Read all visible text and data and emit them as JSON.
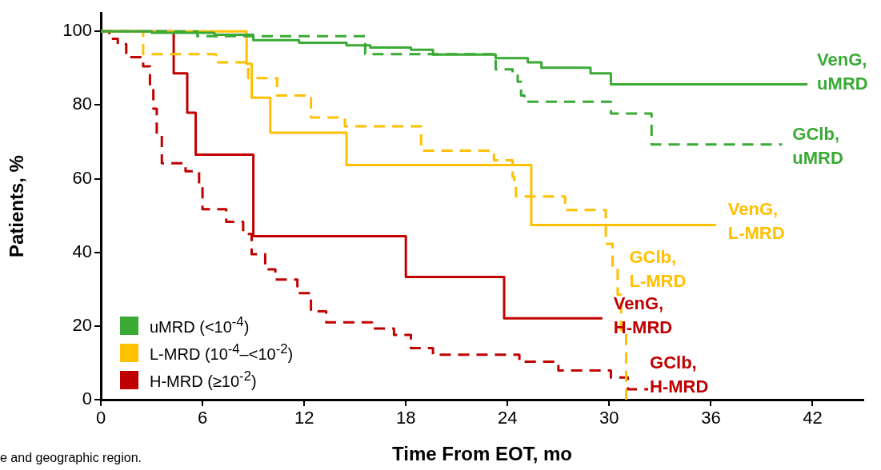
{
  "chart_data": {
    "type": "step",
    "xlabel": "Time From EOT, mo",
    "ylabel": "Patients, %",
    "xlim": [
      0,
      45
    ],
    "xticks": [
      0,
      6,
      12,
      18,
      24,
      30,
      36,
      42
    ],
    "ylim": [
      0,
      105
    ],
    "yticks": [
      0,
      20,
      40,
      60,
      80,
      100
    ],
    "grid": false,
    "marker": "none",
    "annotations": [
      "uMRD (<10$^{-4}$)",
      "L-MRD (10$^{-4}$–<10$^{-2}$)",
      "H-MRD (≥10$^{-2}$)",
      "e and geographic region."
    ],
    "series": [
      {
        "name": "VenG, uMRD",
        "color": "#3aaa35",
        "line_style": "solid",
        "x": [
          0,
          3,
          6.7,
          9,
          11.7,
          14.5,
          15.9,
          18.3,
          19.6,
          23.3,
          25.2,
          26,
          28.9,
          30.1,
          41.7
        ],
        "values": [
          100,
          99.6,
          99.1,
          97.6,
          96.9,
          96.2,
          95.6,
          95,
          93.7,
          92.7,
          91.6,
          90.1,
          88.6,
          85.6,
          85.6
        ]
      },
      {
        "name": "GClb, uMRD",
        "color": "#3aaa35",
        "line_style": "dashed",
        "x": [
          0,
          5.7,
          15.6,
          23.3,
          24.3,
          24.6,
          24.8,
          25,
          30.1,
          32.5,
          40.2
        ],
        "values": [
          100,
          98.7,
          93.8,
          89.7,
          88,
          86.3,
          82.6,
          80.9,
          77.7,
          69.3,
          69.3
        ]
      },
      {
        "name": "VenG, L-MRD",
        "color": "#ffc000",
        "line_style": "solid",
        "x": [
          0,
          8.6,
          8.9,
          10,
          14.5,
          25.4,
          36.3
        ],
        "values": [
          100,
          91.2,
          82,
          72.5,
          63.7,
          47.4,
          47.4
        ]
      },
      {
        "name": "GClb, L-MRD",
        "color": "#ffc000",
        "line_style": "dashed",
        "x": [
          0,
          2.5,
          6.8,
          8.7,
          10.4,
          12.4,
          14.4,
          18.9,
          23.2,
          24.3,
          24.4,
          24.5,
          27.4,
          29.8,
          30.2,
          30.5,
          30.7,
          31
        ],
        "values": [
          100,
          93.8,
          91.6,
          87.3,
          82.6,
          76.6,
          74.2,
          67.6,
          65,
          60.5,
          57.5,
          55.2,
          51.5,
          42.3,
          36,
          28.5,
          18.9,
          0
        ]
      },
      {
        "name": "VenG, H-MRD",
        "color": "#c00000",
        "line_style": "solid",
        "x": [
          0,
          4.3,
          5.1,
          5.6,
          9,
          18,
          23.8,
          29.6
        ],
        "values": [
          100,
          88.6,
          77.9,
          66.5,
          44.4,
          33.3,
          22.1,
          22.1
        ]
      },
      {
        "name": "GClb, H-MRD",
        "color": "#c00000",
        "line_style": "dashed",
        "x": [
          0,
          0.5,
          1,
          1.5,
          2.5,
          2.9,
          3.1,
          3.3,
          3.6,
          5,
          5.8,
          6,
          7.4,
          8.4,
          8.9,
          9.7,
          10.3,
          11.6,
          12.4,
          13.3,
          16,
          17.3,
          18.3,
          19.6,
          24.7,
          27,
          30.1,
          31.1,
          32.3
        ],
        "values": [
          100,
          98,
          96.5,
          93,
          90.5,
          85,
          79,
          72,
          64.2,
          62,
          58,
          51.7,
          48.3,
          45,
          39.5,
          35.4,
          32.6,
          28.9,
          24,
          21,
          19.3,
          17.6,
          14,
          12.2,
          10.3,
          7.9,
          6,
          2.8,
          2.8
        ]
      }
    ]
  }
}
